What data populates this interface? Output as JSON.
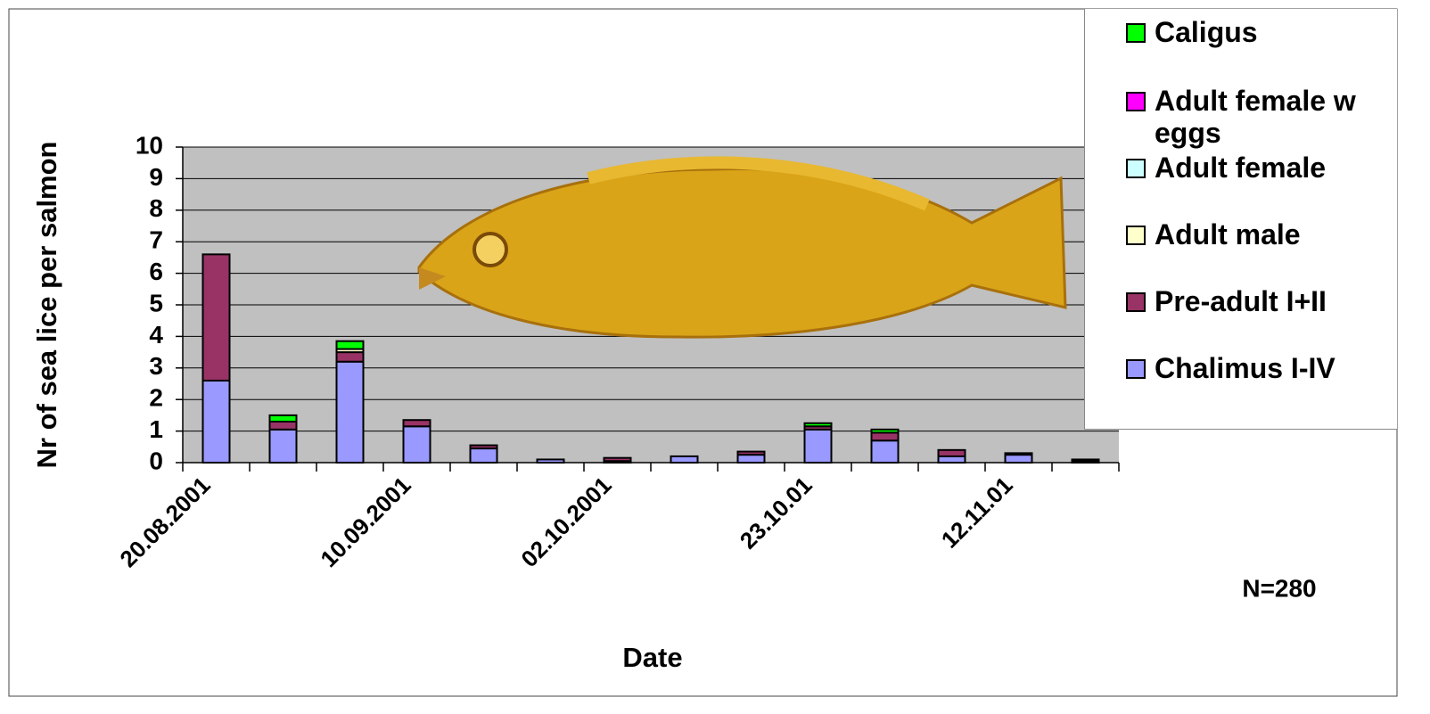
{
  "chart_data": {
    "type": "stacked-bar",
    "x_label": "Date",
    "y_label": "Nr of sea lice per salmon",
    "annotation": "N=280",
    "categories": [
      "20.08.2001",
      null,
      null,
      "10.09.2001",
      null,
      null,
      "02.10.2001",
      null,
      null,
      "23.10.01",
      null,
      null,
      "12.11.01",
      null
    ],
    "series": [
      {
        "name": "Chalimus I-IV",
        "color": "#9999ff",
        "values": [
          2.6,
          1.05,
          3.2,
          1.15,
          0.45,
          0.1,
          0.05,
          0.2,
          0.25,
          1.05,
          0.7,
          0.2,
          0.25,
          0.05
        ]
      },
      {
        "name": "Pre-adult I+II",
        "color": "#993366",
        "values": [
          4.0,
          0.25,
          0.3,
          0.2,
          0.1,
          0,
          0.1,
          0,
          0.1,
          0.1,
          0.25,
          0.2,
          0.05,
          0.05
        ]
      },
      {
        "name": "Adult male",
        "color": "#ffffcc",
        "values": [
          0,
          0,
          0.1,
          0,
          0,
          0,
          0,
          0,
          0,
          0,
          0,
          0,
          0,
          0
        ]
      },
      {
        "name": "Adult female",
        "color": "#ccffff",
        "values": [
          0,
          0,
          0,
          0,
          0,
          0,
          0,
          0,
          0,
          0,
          0,
          0,
          0,
          0
        ]
      },
      {
        "name": "Adult female w eggs",
        "color": "#ff00ff",
        "values": [
          0,
          0,
          0,
          0,
          0,
          0,
          0,
          0,
          0,
          0,
          0,
          0,
          0,
          0
        ]
      },
      {
        "name": "Caligus",
        "color": "#00ff00",
        "values": [
          0,
          0.2,
          0.25,
          0,
          0,
          0,
          0,
          0,
          0,
          0.1,
          0.1,
          0,
          0,
          0
        ]
      }
    ],
    "ylim": [
      0,
      10
    ],
    "yticks": [
      0,
      1,
      2,
      3,
      4,
      5,
      6,
      7,
      8,
      9,
      10
    ],
    "grid": true,
    "legend": "right"
  }
}
